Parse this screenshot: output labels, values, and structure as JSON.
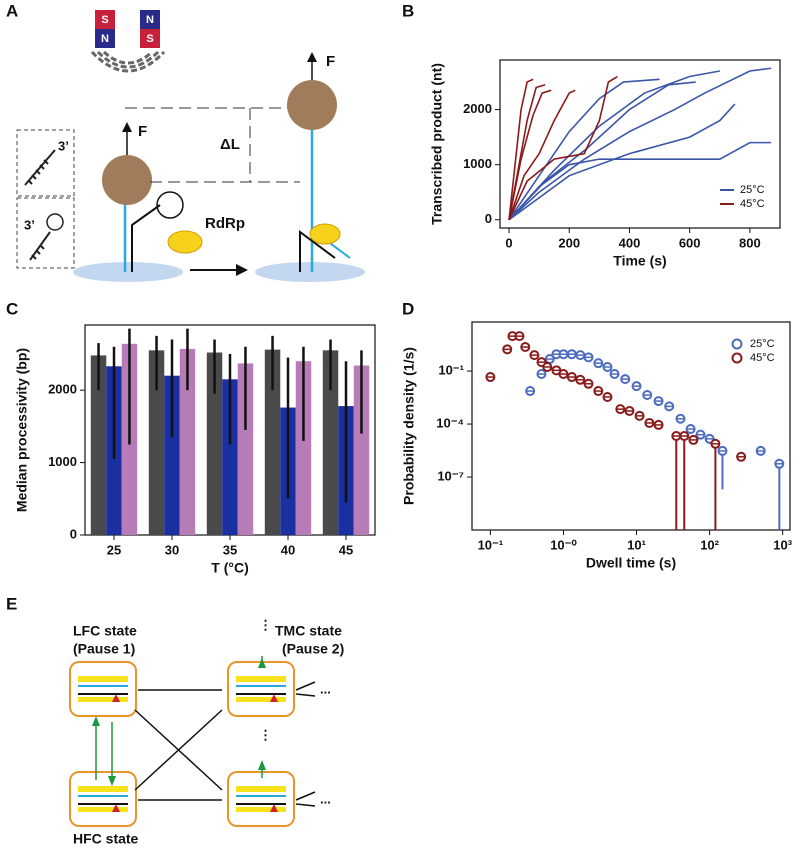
{
  "panels": [
    "A",
    "B",
    "C",
    "D",
    "E"
  ],
  "diagram_a": {
    "magnet_left": [
      "S",
      "N"
    ],
    "magnet_right": [
      "N",
      "S"
    ],
    "force_left": "F",
    "force_right": "F",
    "delta": "ΔL",
    "end_top": "3’",
    "end_bottom": "3’",
    "enzyme": "RdRp"
  },
  "chart_data": [
    {
      "type": "line",
      "xlabel": "Time (s)",
      "ylabel": "Transcribed product (nt)",
      "xlim": [
        -30,
        900
      ],
      "ylim": [
        -150,
        2900
      ],
      "xticks": [
        0,
        200,
        400,
        600,
        800
      ],
      "yticks": [
        0,
        1000,
        2000
      ],
      "legend": "lower right",
      "series": [
        {
          "name": "25°C",
          "color": "#3b55a8",
          "traces": [
            {
              "x": [
                0,
                100,
                200,
                300,
                400,
                500,
                600,
                700,
                800,
                870
              ],
              "values": [
                0,
                600,
                1000,
                1100,
                1100,
                1100,
                1100,
                1100,
                1400,
                1400
              ]
            },
            {
              "x": [
                0,
                100,
                250,
                400,
                550,
                650,
                800,
                870
              ],
              "values": [
                0,
                500,
                1100,
                1600,
                2000,
                2300,
                2700,
                2750
              ]
            },
            {
              "x": [
                0,
                150,
                300,
                450,
                600,
                700
              ],
              "values": [
                0,
                900,
                1700,
                2300,
                2600,
                2700
              ]
            },
            {
              "x": [
                0,
                100,
                200,
                300,
                380,
                500
              ],
              "values": [
                0,
                800,
                1600,
                2200,
                2500,
                2550
              ]
            },
            {
              "x": [
                0,
                120,
                260,
                400,
                530,
                620
              ],
              "values": [
                0,
                700,
                1300,
                2000,
                2450,
                2500
              ]
            },
            {
              "x": [
                0,
                200,
                400,
                600,
                700,
                750
              ],
              "values": [
                0,
                800,
                1200,
                1500,
                1800,
                2100
              ]
            }
          ]
        },
        {
          "name": "45°C",
          "color": "#8b1a1a",
          "traces": [
            {
              "x": [
                0,
                20,
                40,
                60,
                80
              ],
              "values": [
                0,
                1000,
                2000,
                2500,
                2550
              ]
            },
            {
              "x": [
                0,
                30,
                60,
                90,
                120
              ],
              "values": [
                0,
                900,
                1800,
                2400,
                2450
              ]
            },
            {
              "x": [
                0,
                50,
                100,
                150,
                200,
                220
              ],
              "values": [
                0,
                800,
                1200,
                1800,
                2300,
                2350
              ]
            },
            {
              "x": [
                0,
                60,
                150,
                250,
                300,
                330,
                360
              ],
              "values": [
                0,
                700,
                1100,
                1200,
                1800,
                2500,
                2600
              ]
            },
            {
              "x": [
                0,
                40,
                80,
                110,
                140
              ],
              "values": [
                0,
                1100,
                1900,
                2300,
                2350
              ]
            }
          ]
        }
      ]
    },
    {
      "type": "bar",
      "xlabel": "T (°C)",
      "ylabel": "Median processivity (bp)",
      "categories": [
        "25",
        "30",
        "35",
        "40",
        "45"
      ],
      "ylim": [
        0,
        2900
      ],
      "yticks": [
        0,
        1000,
        2000
      ],
      "series": [
        {
          "color": "#4a4a4a",
          "values": [
            2480,
            2550,
            2520,
            2560,
            2550
          ],
          "err_low": [
            2000,
            2000,
            1950,
            2000,
            2000
          ],
          "err_high": [
            2650,
            2750,
            2700,
            2750,
            2700
          ]
        },
        {
          "color": "#1a2fa0",
          "values": [
            2330,
            2200,
            2150,
            1760,
            1780
          ],
          "err_low": [
            1050,
            1350,
            1250,
            500,
            450
          ],
          "err_high": [
            2600,
            2700,
            2500,
            2450,
            2400
          ]
        },
        {
          "color": "#b77bb8",
          "values": [
            2640,
            2570,
            2370,
            2400,
            2340
          ],
          "err_low": [
            1250,
            2000,
            1450,
            1300,
            1400
          ],
          "err_high": [
            2850,
            2850,
            2600,
            2600,
            2550
          ]
        }
      ]
    },
    {
      "type": "scatter",
      "xlabel": "Dwell time (s)",
      "ylabel": "Probability density (1/s)",
      "xlog": true,
      "ylog": true,
      "legend": "upper right",
      "xlim": [
        0.056,
        1260
      ],
      "ylim": [
        1e-10,
        60
      ],
      "xticks": [
        {
          "value": 0.1,
          "label": "10⁻¹"
        },
        {
          "value": 1,
          "label": "10⁻⁰"
        },
        {
          "value": 10,
          "label": "10¹"
        },
        {
          "value": 100,
          "label": "10²"
        },
        {
          "value": 1000,
          "label": "10³"
        }
      ],
      "yticks": [
        {
          "value": 0.1,
          "label": "10⁻¹"
        },
        {
          "value": 0.0001,
          "label": "10⁻⁴"
        },
        {
          "value": 1e-07,
          "label": "10⁻⁷"
        }
      ],
      "series": [
        {
          "name": "25°C",
          "color": "#4d6bc0",
          "x": [
            0.35,
            0.5,
            0.65,
            0.8,
            1,
            1.3,
            1.7,
            2.2,
            3,
            4,
            5,
            7,
            10,
            14,
            20,
            28,
            40,
            55,
            75,
            100,
            150,
            500,
            900
          ],
          "values": [
            0.0074,
            0.068,
            0.48,
            0.9,
            0.9,
            0.9,
            0.8,
            0.6,
            0.28,
            0.17,
            0.068,
            0.035,
            0.014,
            0.0044,
            0.002,
            0.001,
            0.0002,
            5.2e-05,
            2.5e-05,
            1.45e-05,
            3e-06,
            3e-06,
            5.6e-07
          ],
          "lower": [
            null,
            null,
            null,
            null,
            null,
            null,
            null,
            null,
            null,
            null,
            null,
            null,
            null,
            null,
            null,
            null,
            null,
            null,
            null,
            null,
            2e-08,
            null,
            1e-10
          ]
        },
        {
          "name": "45°C",
          "color": "#8b1a1a",
          "x": [
            0.1,
            0.17,
            0.2,
            0.25,
            0.3,
            0.4,
            0.5,
            0.6,
            0.8,
            1,
            1.3,
            1.7,
            2.2,
            3,
            4,
            6,
            8,
            11,
            15,
            20,
            35,
            45,
            60,
            120,
            270
          ],
          "values": [
            0.046,
            1.7,
            9.5,
            9.5,
            2.3,
            0.8,
            0.32,
            0.17,
            0.11,
            0.068,
            0.046,
            0.032,
            0.019,
            0.0074,
            0.0034,
            0.0007,
            0.00055,
            0.00029,
            0.000115,
            8.9e-05,
            2.1e-05,
            2.1e-05,
            1.26e-05,
            7.6e-06,
            1.4e-06
          ],
          "lower": [
            null,
            null,
            null,
            null,
            null,
            null,
            null,
            null,
            null,
            null,
            null,
            null,
            null,
            null,
            null,
            null,
            null,
            null,
            null,
            null,
            1e-10,
            1e-10,
            null,
            1e-10,
            null
          ]
        }
      ]
    }
  ],
  "diagram_e": {
    "lfc": [
      "LFC state",
      "(Pause 1)"
    ],
    "tmc": [
      "TMC state",
      "(Pause 2)"
    ],
    "hfc": "HFC state",
    "dots": "...",
    "vdots": "⋮"
  }
}
